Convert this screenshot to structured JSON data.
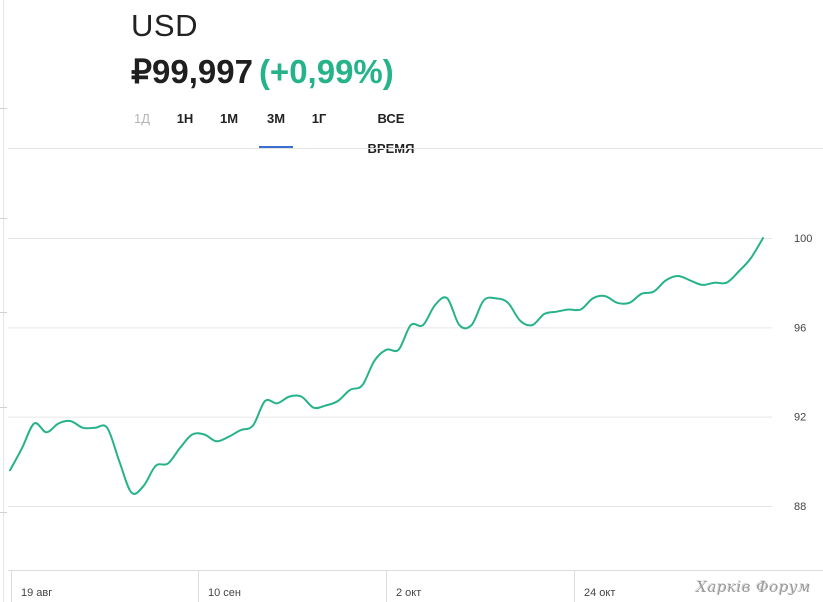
{
  "header": {
    "ticker": "USD",
    "price": "₽99,997",
    "change": "(+0,99%)"
  },
  "tabs": [
    {
      "label": "1Д",
      "state": "disabled"
    },
    {
      "label": "1Н",
      "state": "normal"
    },
    {
      "label": "1М",
      "state": "normal"
    },
    {
      "label": "3М",
      "state": "active"
    },
    {
      "label": "1Г",
      "state": "normal"
    },
    {
      "label": "ВСЕ ВРЕМЯ",
      "state": "normal"
    }
  ],
  "watermark": "Харків Форум",
  "colors": {
    "line": "#26b389",
    "accent": "#3a6fd0",
    "change": "#26b389"
  },
  "chart_data": {
    "type": "line",
    "y_ticks": [
      "100",
      "96",
      "92",
      "88"
    ],
    "x_ticks": [
      "19 авг",
      "10 сен",
      "2 окт",
      "24 окт"
    ],
    "ylim": [
      86,
      102
    ],
    "grid": true,
    "series": [
      {
        "values": [
          89.6,
          90.6,
          91.7,
          91.3,
          91.7,
          91.8,
          91.5,
          91.5,
          91.5,
          90.0,
          88.6,
          88.9,
          89.8,
          89.9,
          90.6,
          91.2,
          91.2,
          90.9,
          91.1,
          91.4,
          91.6,
          92.7,
          92.6,
          92.9,
          92.9,
          92.4,
          92.5,
          92.7,
          93.2,
          93.4,
          94.5,
          95.0,
          95.0,
          96.1,
          96.1,
          97.0,
          97.3,
          96.1,
          96.1,
          97.2,
          97.3,
          97.1,
          96.3,
          96.1,
          96.6,
          96.7,
          96.8,
          96.8,
          97.3,
          97.4,
          97.1,
          97.1,
          97.5,
          97.6,
          98.1,
          98.3,
          98.1,
          97.9,
          98.0,
          98.0,
          98.5,
          99.1,
          99.997
        ]
      }
    ]
  }
}
